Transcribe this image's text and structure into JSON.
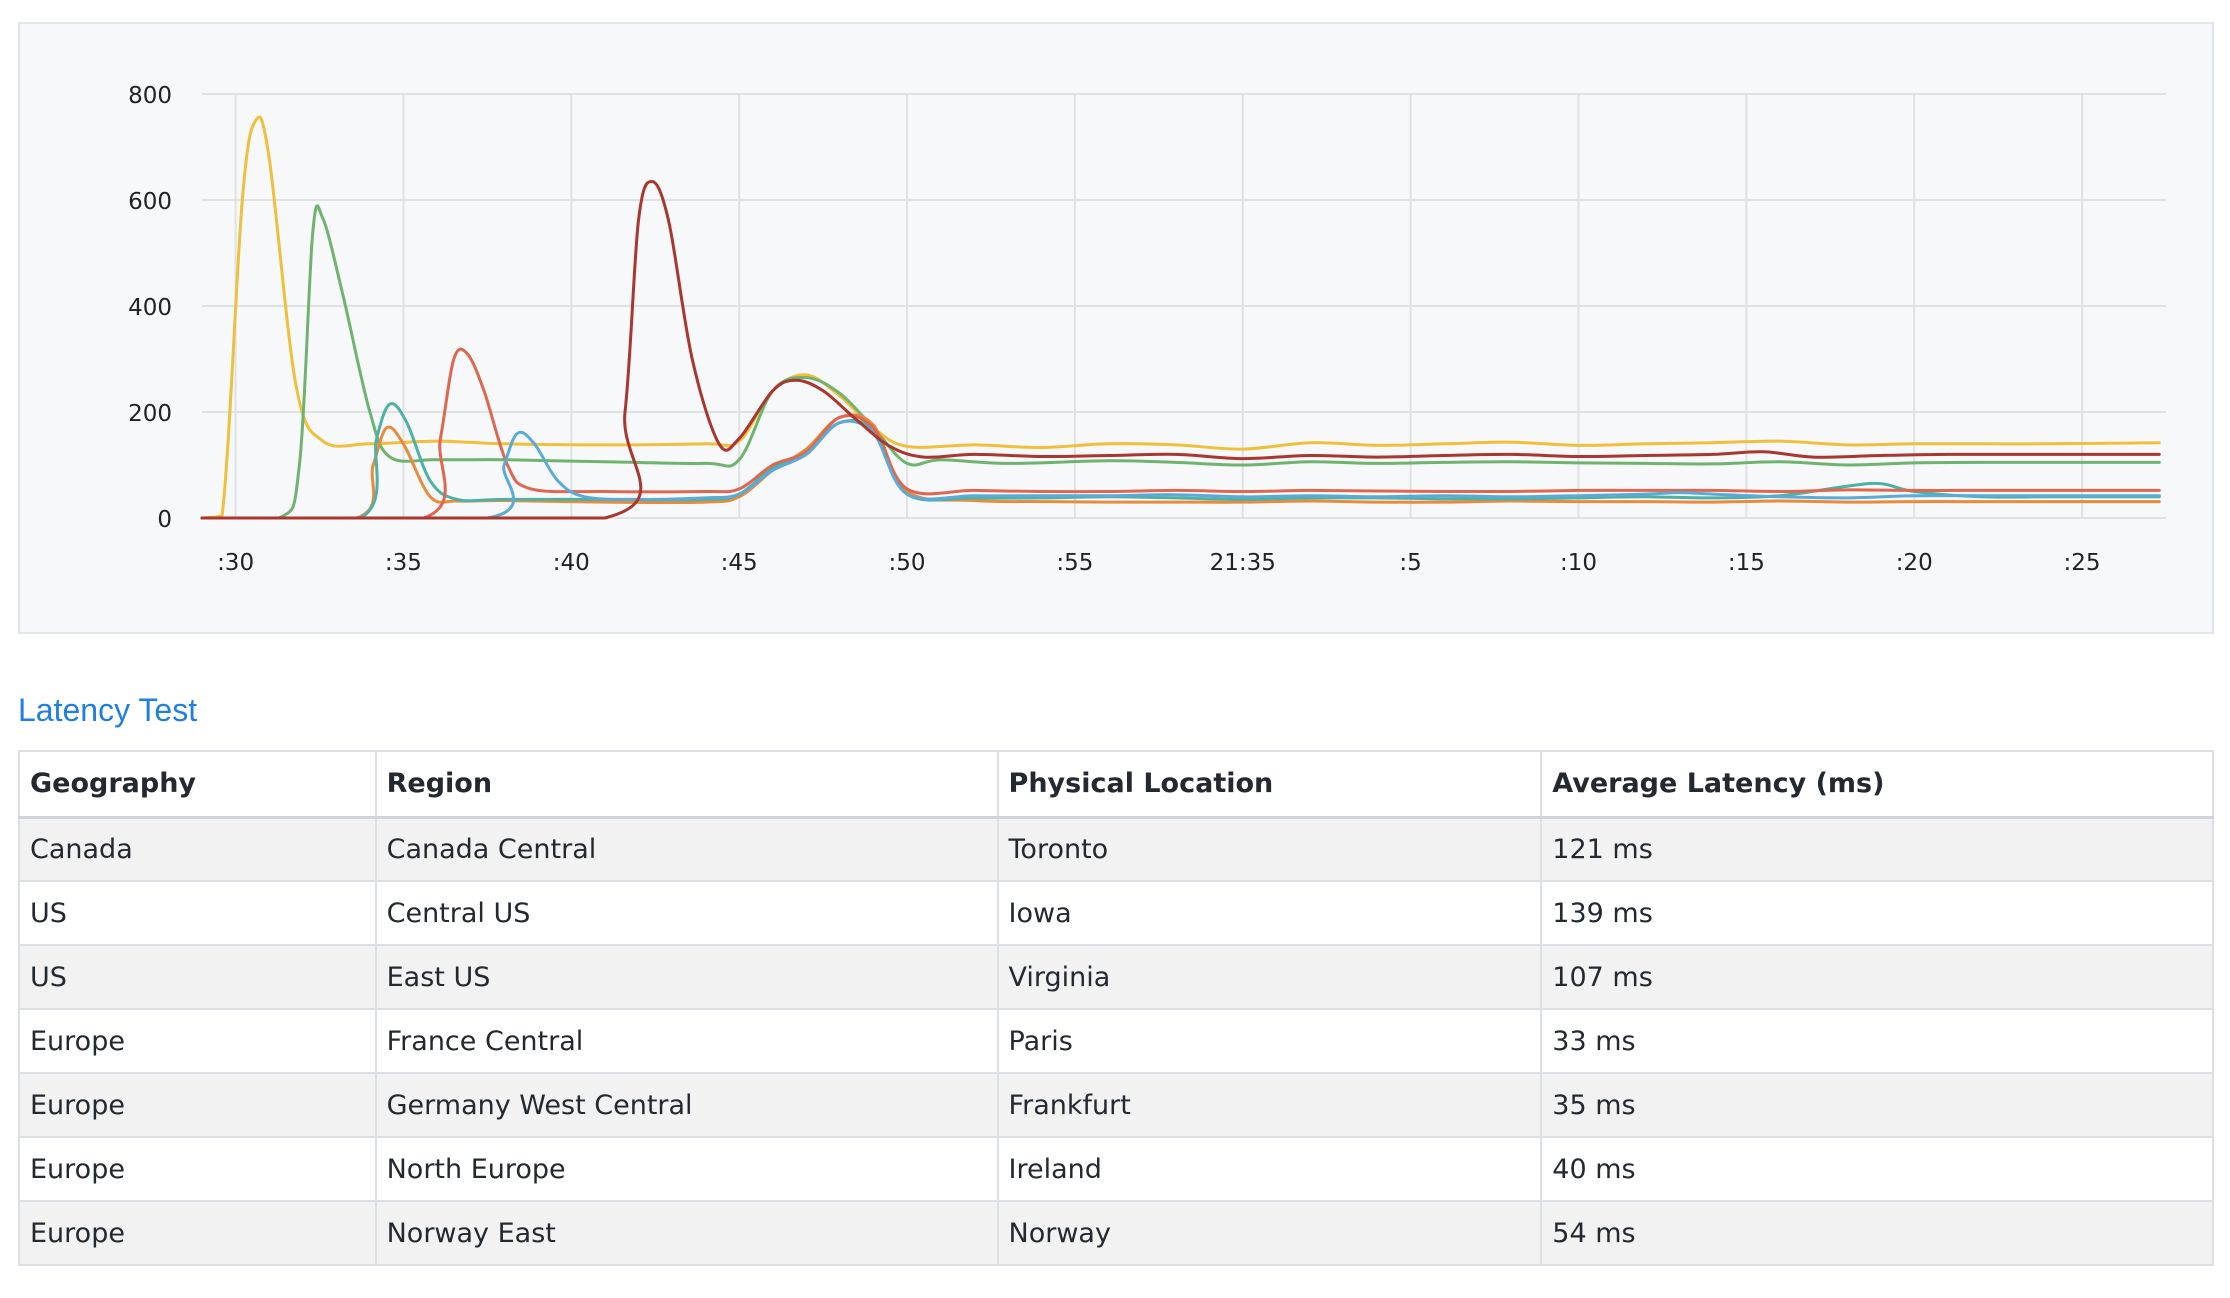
{
  "chart_data": {
    "type": "line",
    "title": "",
    "xlabel": "",
    "ylabel": "",
    "ylim": [
      0,
      800
    ],
    "yticks": [
      0,
      200,
      400,
      600,
      800
    ],
    "xlim": [
      0,
      58.5
    ],
    "x_tick_labels": [
      ":30",
      ":35",
      ":40",
      ":45",
      ":50",
      ":55",
      "21:35",
      ":5",
      ":10",
      ":15",
      ":20",
      ":25"
    ],
    "x_tick_positions": [
      1,
      6,
      11,
      16,
      21,
      26,
      31,
      36,
      41,
      46,
      51,
      56
    ],
    "grid": true,
    "legend": "none",
    "x_unit_note": "x values are minutes from the left edge of the plot; ticks every 5",
    "series": [
      {
        "color": "#f0c03c",
        "points": [
          [
            0,
            0
          ],
          [
            0.6,
            5
          ],
          [
            1.2,
            600
          ],
          [
            1.6,
            750
          ],
          [
            2.0,
            680
          ],
          [
            2.8,
            250
          ],
          [
            3.6,
            145
          ],
          [
            5,
            140
          ],
          [
            7,
            145
          ],
          [
            9,
            140
          ],
          [
            12,
            138
          ],
          [
            15,
            140
          ],
          [
            16,
            145
          ],
          [
            17,
            240
          ],
          [
            18,
            270
          ],
          [
            19,
            230
          ],
          [
            20,
            170
          ],
          [
            21,
            135
          ],
          [
            23,
            138
          ],
          [
            25,
            133
          ],
          [
            27,
            140
          ],
          [
            29,
            138
          ],
          [
            31,
            130
          ],
          [
            33,
            142
          ],
          [
            35,
            137
          ],
          [
            37,
            140
          ],
          [
            39,
            143
          ],
          [
            41,
            137
          ],
          [
            43,
            140
          ],
          [
            45,
            142
          ],
          [
            47,
            145
          ],
          [
            49,
            138
          ],
          [
            51,
            140
          ],
          [
            53,
            140
          ],
          [
            55,
            140
          ],
          [
            58.3,
            142
          ]
        ]
      },
      {
        "color": "#6fb36f",
        "points": [
          [
            0,
            0
          ],
          [
            2.3,
            0
          ],
          [
            2.9,
            100
          ],
          [
            3.3,
            540
          ],
          [
            3.6,
            565
          ],
          [
            4.2,
            420
          ],
          [
            5,
            200
          ],
          [
            5.6,
            115
          ],
          [
            7,
            110
          ],
          [
            9,
            110
          ],
          [
            12,
            106
          ],
          [
            15,
            103
          ],
          [
            16,
            110
          ],
          [
            17,
            240
          ],
          [
            18,
            265
          ],
          [
            19,
            235
          ],
          [
            20,
            170
          ],
          [
            21,
            103
          ],
          [
            22,
            110
          ],
          [
            24,
            103
          ],
          [
            27,
            108
          ],
          [
            29,
            105
          ],
          [
            31,
            100
          ],
          [
            33,
            106
          ],
          [
            35,
            103
          ],
          [
            37,
            105
          ],
          [
            39,
            106
          ],
          [
            41,
            104
          ],
          [
            43,
            103
          ],
          [
            45,
            102
          ],
          [
            47,
            106
          ],
          [
            49,
            100
          ],
          [
            51,
            104
          ],
          [
            53,
            105
          ],
          [
            55,
            105
          ],
          [
            58.3,
            105
          ]
        ]
      },
      {
        "color": "#e98a3c",
        "points": [
          [
            0,
            0
          ],
          [
            4.6,
            0
          ],
          [
            5.1,
            100
          ],
          [
            5.5,
            170
          ],
          [
            6.0,
            140
          ],
          [
            6.8,
            40
          ],
          [
            7.6,
            32
          ],
          [
            9,
            33
          ],
          [
            12,
            30
          ],
          [
            15,
            30
          ],
          [
            16,
            40
          ],
          [
            17,
            90
          ],
          [
            18,
            130
          ],
          [
            19,
            190
          ],
          [
            20,
            175
          ],
          [
            21,
            50
          ],
          [
            23,
            33
          ],
          [
            25,
            31
          ],
          [
            27,
            30
          ],
          [
            29,
            30
          ],
          [
            31,
            30
          ],
          [
            33,
            32
          ],
          [
            35,
            30
          ],
          [
            37,
            30
          ],
          [
            39,
            32
          ],
          [
            41,
            31
          ],
          [
            43,
            31
          ],
          [
            45,
            30
          ],
          [
            47,
            32
          ],
          [
            49,
            30
          ],
          [
            51,
            31
          ],
          [
            53,
            31
          ],
          [
            55,
            31
          ],
          [
            58.3,
            31
          ]
        ]
      },
      {
        "color": "#4fb1a5",
        "points": [
          [
            0,
            0
          ],
          [
            4.7,
            0
          ],
          [
            5.2,
            150
          ],
          [
            5.6,
            215
          ],
          [
            6.1,
            180
          ],
          [
            6.8,
            70
          ],
          [
            7.6,
            35
          ],
          [
            9,
            35
          ],
          [
            12,
            35
          ],
          [
            15,
            35
          ],
          [
            16,
            45
          ],
          [
            17,
            95
          ],
          [
            18,
            125
          ],
          [
            19,
            180
          ],
          [
            20,
            165
          ],
          [
            21,
            45
          ],
          [
            23,
            38
          ],
          [
            25,
            38
          ],
          [
            27,
            40
          ],
          [
            29,
            38
          ],
          [
            31,
            35
          ],
          [
            33,
            38
          ],
          [
            35,
            38
          ],
          [
            37,
            36
          ],
          [
            39,
            36
          ],
          [
            41,
            38
          ],
          [
            43,
            40
          ],
          [
            45,
            38
          ],
          [
            47,
            42
          ],
          [
            49,
            60
          ],
          [
            50,
            65
          ],
          [
            51,
            50
          ],
          [
            53,
            40
          ],
          [
            55,
            40
          ],
          [
            58.3,
            40
          ]
        ]
      },
      {
        "color": "#e0674f",
        "points": [
          [
            0,
            0
          ],
          [
            6.6,
            0
          ],
          [
            7.1,
            150
          ],
          [
            7.5,
            300
          ],
          [
            7.9,
            310
          ],
          [
            8.4,
            240
          ],
          [
            9.1,
            100
          ],
          [
            9.8,
            55
          ],
          [
            12,
            50
          ],
          [
            15,
            50
          ],
          [
            16,
            55
          ],
          [
            17,
            100
          ],
          [
            18,
            125
          ],
          [
            19,
            190
          ],
          [
            20,
            170
          ],
          [
            21,
            55
          ],
          [
            23,
            52
          ],
          [
            25,
            50
          ],
          [
            27,
            50
          ],
          [
            29,
            52
          ],
          [
            31,
            50
          ],
          [
            33,
            52
          ],
          [
            35,
            51
          ],
          [
            37,
            50
          ],
          [
            39,
            50
          ],
          [
            41,
            52
          ],
          [
            43,
            52
          ],
          [
            45,
            52
          ],
          [
            47,
            50
          ],
          [
            49,
            53
          ],
          [
            51,
            52
          ],
          [
            53,
            52
          ],
          [
            55,
            52
          ],
          [
            58.3,
            52
          ]
        ]
      },
      {
        "color": "#5aabd6",
        "points": [
          [
            0,
            0
          ],
          [
            8.5,
            0
          ],
          [
            9.0,
            100
          ],
          [
            9.4,
            160
          ],
          [
            9.9,
            140
          ],
          [
            10.6,
            70
          ],
          [
            11.4,
            40
          ],
          [
            13,
            35
          ],
          [
            15,
            38
          ],
          [
            16,
            45
          ],
          [
            17,
            90
          ],
          [
            18,
            120
          ],
          [
            19,
            180
          ],
          [
            20,
            160
          ],
          [
            21,
            45
          ],
          [
            23,
            42
          ],
          [
            25,
            42
          ],
          [
            27,
            42
          ],
          [
            29,
            44
          ],
          [
            31,
            40
          ],
          [
            33,
            42
          ],
          [
            35,
            40
          ],
          [
            37,
            42
          ],
          [
            39,
            40
          ],
          [
            41,
            42
          ],
          [
            43,
            45
          ],
          [
            44,
            48
          ],
          [
            45,
            45
          ],
          [
            47,
            40
          ],
          [
            49,
            38
          ],
          [
            51,
            42
          ],
          [
            53,
            42
          ],
          [
            55,
            42
          ],
          [
            58.3,
            42
          ]
        ]
      },
      {
        "color": "#a9362f",
        "points": [
          [
            0,
            0
          ],
          [
            12.0,
            0
          ],
          [
            12.6,
            200
          ],
          [
            13.0,
            560
          ],
          [
            13.4,
            635
          ],
          [
            13.9,
            560
          ],
          [
            14.6,
            300
          ],
          [
            15.4,
            140
          ],
          [
            16,
            150
          ],
          [
            17,
            240
          ],
          [
            17.7,
            260
          ],
          [
            18.5,
            240
          ],
          [
            19.5,
            185
          ],
          [
            20.5,
            135
          ],
          [
            21.5,
            115
          ],
          [
            23,
            120
          ],
          [
            25,
            116
          ],
          [
            27,
            118
          ],
          [
            29,
            120
          ],
          [
            31,
            112
          ],
          [
            33,
            118
          ],
          [
            35,
            115
          ],
          [
            37,
            118
          ],
          [
            39,
            120
          ],
          [
            41,
            116
          ],
          [
            43,
            118
          ],
          [
            45,
            120
          ],
          [
            46.5,
            125
          ],
          [
            48,
            115
          ],
          [
            50,
            118
          ],
          [
            52,
            120
          ],
          [
            55,
            120
          ],
          [
            58.3,
            120
          ]
        ]
      }
    ]
  },
  "section_title": "Latency Test",
  "table": {
    "headers": [
      "Geography",
      "Region",
      "Physical Location",
      "Average Latency (ms)"
    ],
    "rows": [
      [
        "Canada",
        "Canada Central",
        "Toronto",
        "121 ms"
      ],
      [
        "US",
        "Central US",
        "Iowa",
        "139 ms"
      ],
      [
        "US",
        "East US",
        "Virginia",
        "107 ms"
      ],
      [
        "Europe",
        "France Central",
        "Paris",
        "33 ms"
      ],
      [
        "Europe",
        "Germany West Central",
        "Frankfurt",
        "35 ms"
      ],
      [
        "Europe",
        "North Europe",
        "Ireland",
        "40 ms"
      ],
      [
        "Europe",
        "Norway East",
        "Norway",
        "54 ms"
      ]
    ]
  }
}
